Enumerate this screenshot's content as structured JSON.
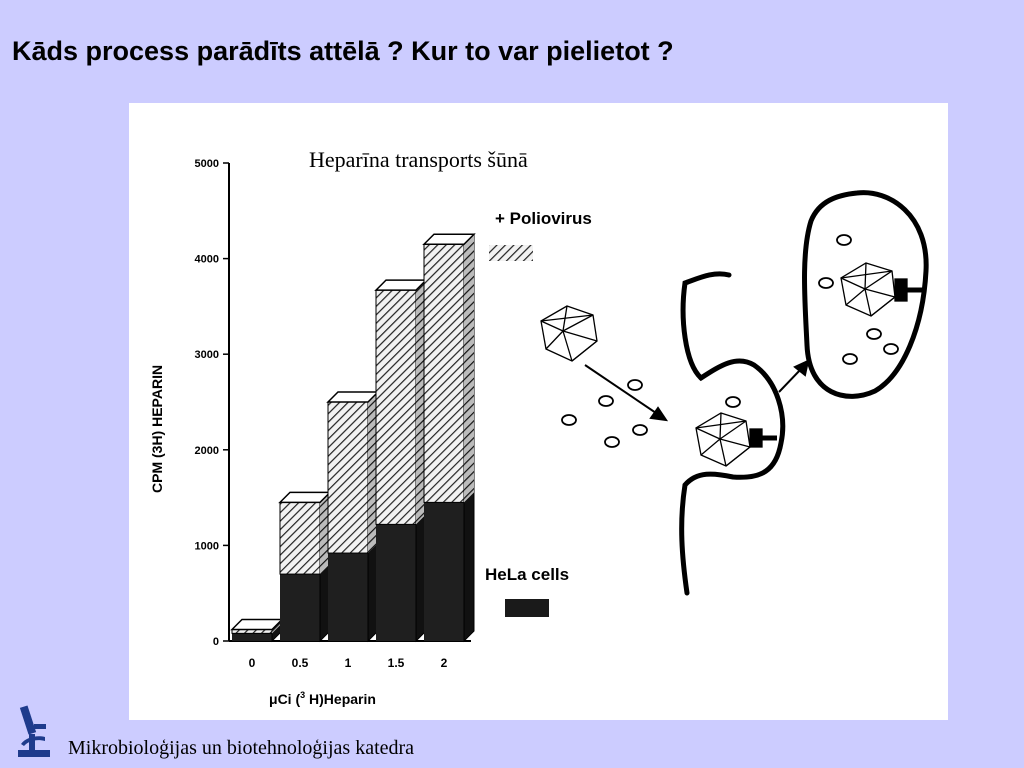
{
  "slide": {
    "title": "Kāds process parādīts attēlā ? Kur to var pielietot ?",
    "footer": "Mikrobioloģijas un biotehnoloģijas katedra",
    "logo_icon": "microscope-icon",
    "background": "#ccccff"
  },
  "chart_data": {
    "type": "bar",
    "title": "Heparīna transports šūnā",
    "ylabel": "CPM (3H) HEPARIN",
    "xlabel_prefix": "μCi (",
    "xlabel_sup": "3",
    "xlabel_suffix": " H)Heparin",
    "ylim": [
      0,
      5000
    ],
    "yticks": [
      "0",
      "1000",
      "2000",
      "3000",
      "4000",
      "5000"
    ],
    "categories": [
      "0",
      "0.5",
      "1",
      "1.5",
      "2"
    ],
    "stacked": true,
    "series": [
      {
        "name": "HeLa cells",
        "pattern": "solid",
        "values": [
          80,
          700,
          920,
          1220,
          1450
        ]
      },
      {
        "name": "+ Poliovirus",
        "pattern": "hatched",
        "values": [
          40,
          750,
          1580,
          2450,
          2700
        ]
      }
    ],
    "legend": [
      {
        "label": "+ Poliovirus",
        "pattern": "hatched"
      },
      {
        "label": "HeLa cells",
        "pattern": "solid"
      }
    ],
    "legend_position": "right",
    "grid": false
  },
  "diagram": {
    "icons": [
      "poliovirus-icon",
      "heparin-molecule-icon",
      "cell-membrane-icon",
      "receptor-icon",
      "endocytosis-vesicle-icon",
      "arrow-icon"
    ]
  }
}
